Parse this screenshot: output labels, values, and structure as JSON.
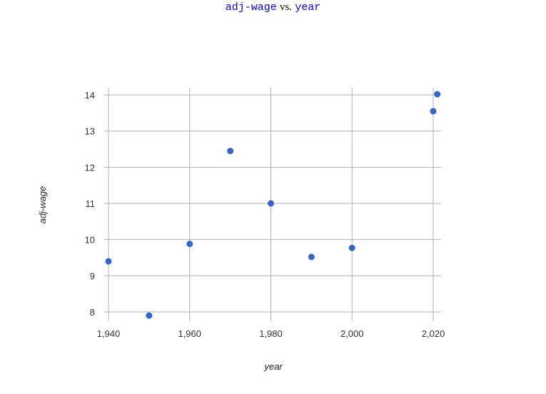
{
  "title": {
    "y_var": "adj-wage",
    "separator": "vs.",
    "x_var": "year"
  },
  "chart_data": {
    "type": "scatter",
    "xlabel": "year",
    "ylabel": "adj-wage",
    "xlim": [
      1940,
      2021
    ],
    "ylim": [
      7.8,
      14.2
    ],
    "x_ticks": [
      1940,
      1960,
      1980,
      2000,
      2020
    ],
    "x_tick_labels": [
      "1,940",
      "1,960",
      "1,980",
      "2,000",
      "2,020"
    ],
    "y_ticks": [
      8,
      9,
      10,
      11,
      12,
      13,
      14
    ],
    "y_tick_labels": [
      "8",
      "9",
      "10",
      "11",
      "12",
      "13",
      "14"
    ],
    "grid": true,
    "point_color": "#3366cc",
    "points": [
      {
        "x": 1940,
        "y": 9.4
      },
      {
        "x": 1950,
        "y": 7.9
      },
      {
        "x": 1960,
        "y": 9.88
      },
      {
        "x": 1970,
        "y": 12.45
      },
      {
        "x": 1980,
        "y": 11.0
      },
      {
        "x": 1990,
        "y": 9.52
      },
      {
        "x": 2000,
        "y": 9.77
      },
      {
        "x": 2020,
        "y": 13.55
      },
      {
        "x": 2021,
        "y": 14.02
      }
    ]
  }
}
